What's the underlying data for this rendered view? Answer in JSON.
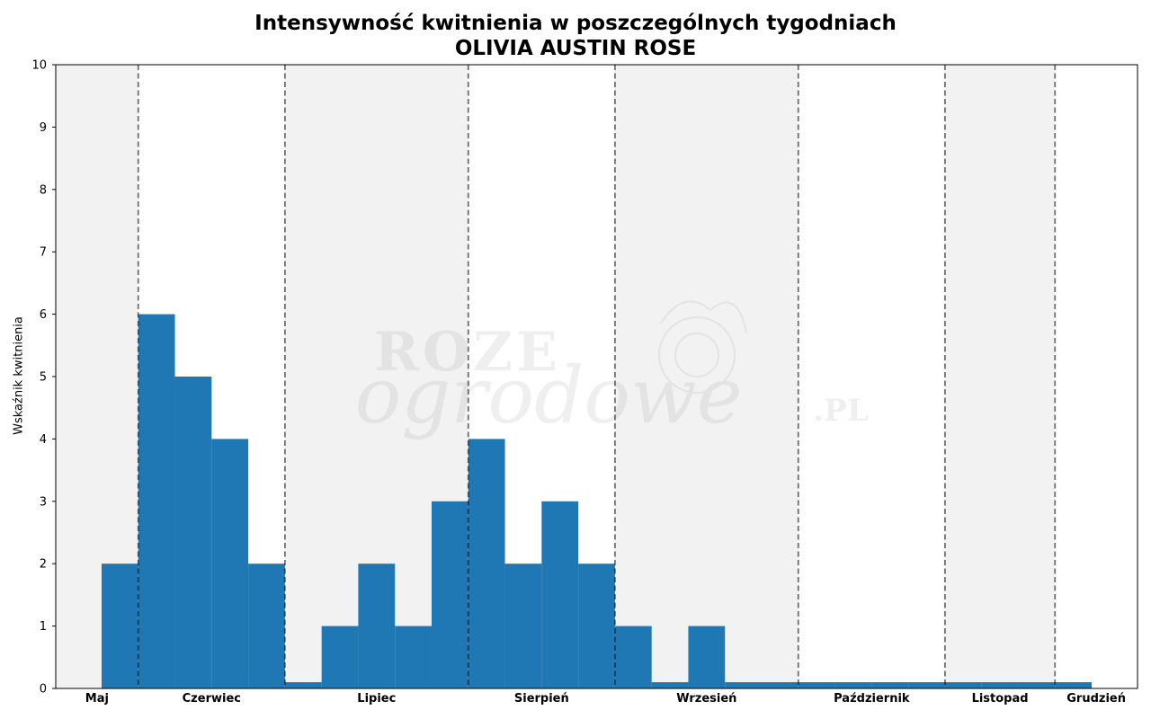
{
  "chart_data": {
    "type": "bar",
    "title": "Intensywność kwitnienia w poszczególnych tygodniach",
    "subtitle": "OLIVIA AUSTIN ROSE",
    "ylabel": "Wskaźnik kwitnienia",
    "ylim": [
      0,
      10
    ],
    "yticks": [
      0,
      1,
      2,
      3,
      4,
      5,
      6,
      7,
      8,
      9,
      10
    ],
    "bar_color": "#1f77b4",
    "months": [
      {
        "label": "Maj",
        "weeks": 2.25,
        "shaded": true
      },
      {
        "label": "Czerwiec",
        "weeks": 4,
        "shaded": false
      },
      {
        "label": "Lipiec",
        "weeks": 5,
        "shaded": true
      },
      {
        "label": "Sierpień",
        "weeks": 4,
        "shaded": false
      },
      {
        "label": "Wrzesień",
        "weeks": 5,
        "shaded": true
      },
      {
        "label": "Październik",
        "weeks": 4,
        "shaded": false
      },
      {
        "label": "Listopad",
        "weeks": 3,
        "shaded": true
      },
      {
        "label": "Grudzień",
        "weeks": 2.25,
        "shaded": false
      }
    ],
    "values": [
      0,
      2,
      6,
      5,
      4,
      2,
      0.1,
      1,
      2,
      1,
      3,
      4,
      2,
      3,
      2,
      1,
      0.1,
      1,
      0.1,
      0.1,
      0.1,
      0.1,
      0.1,
      0.1,
      0.1,
      0.1,
      0.1,
      0.1
    ],
    "grid": false,
    "watermark": [
      "ROZE",
      "ogrodowe",
      ".PL"
    ]
  }
}
